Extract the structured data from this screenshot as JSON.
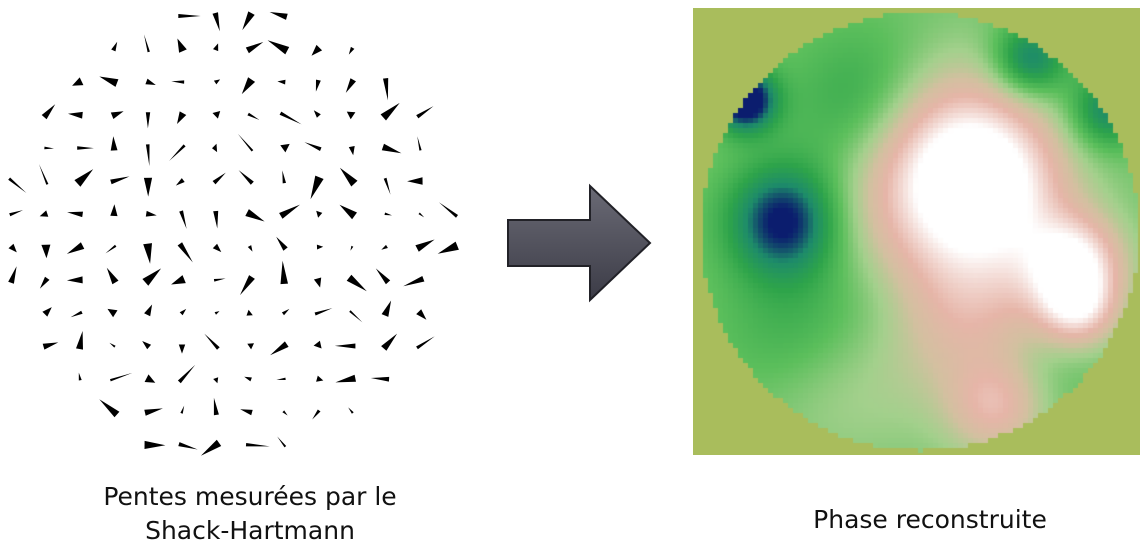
{
  "captions": {
    "left_line1": "Pentes mesurées par le",
    "left_line2": "Shack-Hartmann",
    "right": "Phase reconstruite"
  },
  "figure": {
    "slopes_panel": {
      "spot_color": "#000000",
      "background": "#ffffff"
    },
    "arrow": {
      "direction": "right",
      "fill_top": "#6a6a75",
      "fill_bottom": "#3c3c47",
      "outline": "#222228"
    },
    "phase_map": {
      "background_color": "#a9bd5c",
      "colormap": [
        "#0b1d6e",
        "#1d8b6a",
        "#2ea44a",
        "#5cbf5c",
        "#a3d08c",
        "#d3c0a0",
        "#e6b5a8",
        "#f2d8d2",
        "#ffffff"
      ]
    }
  }
}
